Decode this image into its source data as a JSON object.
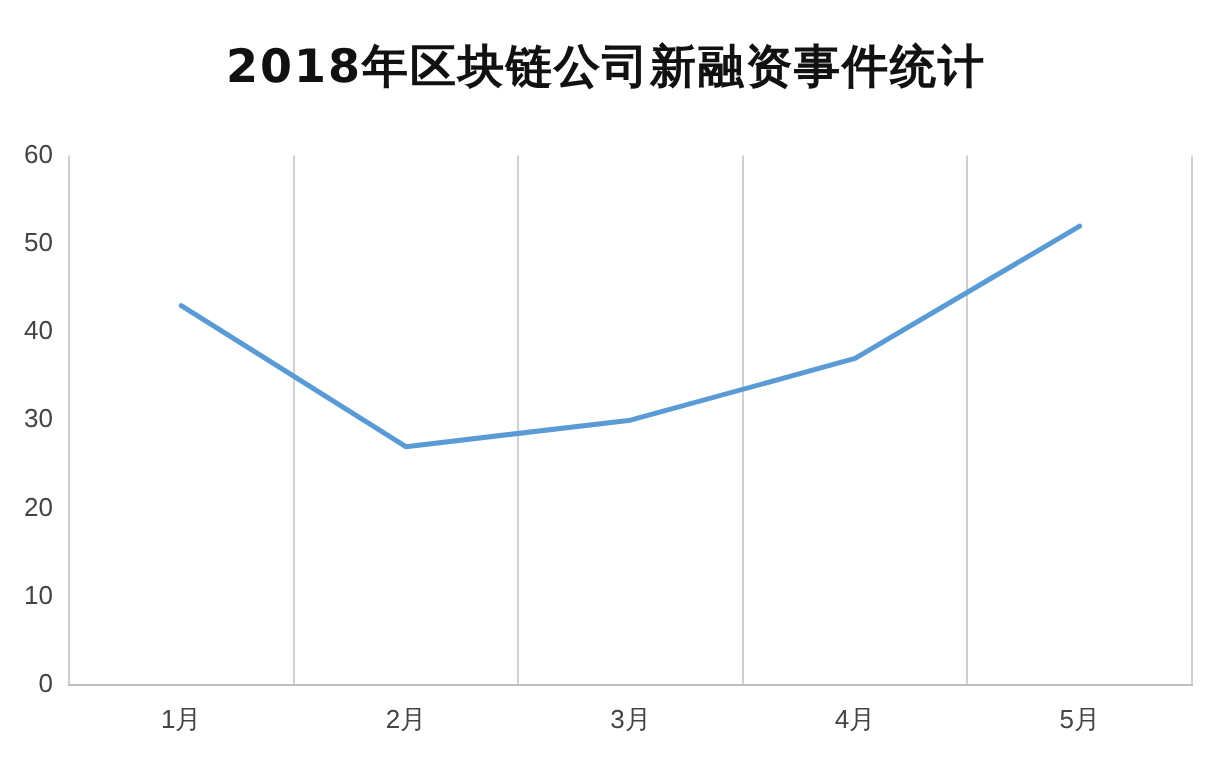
{
  "chart_data": {
    "type": "line",
    "title": "2018年区块链公司新融资事件统计",
    "categories": [
      "1月",
      "2月",
      "3月",
      "4月",
      "5月"
    ],
    "series": [
      {
        "color": "#5b9bd5",
        "values": [
          43,
          27,
          30,
          37,
          52
        ]
      }
    ],
    "ylim": [
      0,
      60
    ],
    "yticks": [
      0,
      10,
      20,
      30,
      40,
      50,
      60
    ],
    "grid": "x",
    "legend": false,
    "marker": "none",
    "line_style": "solid"
  }
}
